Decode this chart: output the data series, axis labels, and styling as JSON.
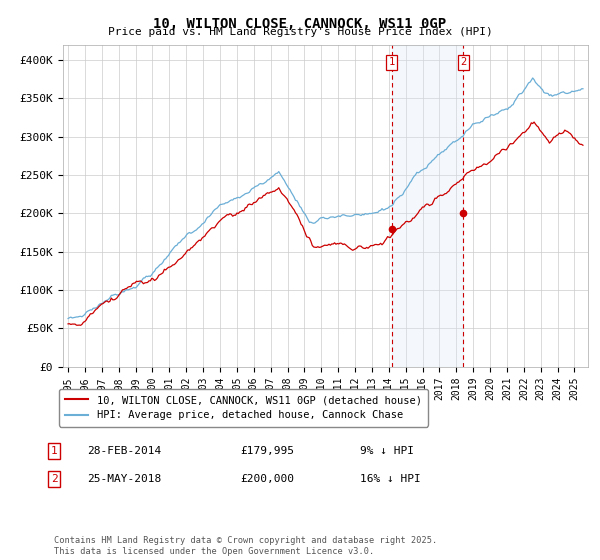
{
  "title": "10, WILTON CLOSE, CANNOCK, WS11 0GP",
  "subtitle": "Price paid vs. HM Land Registry's House Price Index (HPI)",
  "ylabel_ticks": [
    "£0",
    "£50K",
    "£100K",
    "£150K",
    "£200K",
    "£250K",
    "£300K",
    "£350K",
    "£400K"
  ],
  "ytick_values": [
    0,
    50000,
    100000,
    150000,
    200000,
    250000,
    300000,
    350000,
    400000
  ],
  "ylim": [
    0,
    420000
  ],
  "hpi_color": "#6baed6",
  "price_color": "#cc0000",
  "shaded_color": "#dbeaf7",
  "vline_color": "#cc0000",
  "sale1_x": 2014.167,
  "sale2_x": 2018.417,
  "sale1_price": 179995,
  "sale2_price": 200000,
  "legend_label1": "10, WILTON CLOSE, CANNOCK, WS11 0GP (detached house)",
  "legend_label2": "HPI: Average price, detached house, Cannock Chase",
  "table_row1_num": "1",
  "table_row1_date": "28-FEB-2014",
  "table_row1_price": "£179,995",
  "table_row1_hpi": "9% ↓ HPI",
  "table_row2_num": "2",
  "table_row2_date": "25-MAY-2018",
  "table_row2_price": "£200,000",
  "table_row2_hpi": "16% ↓ HPI",
  "footer": "Contains HM Land Registry data © Crown copyright and database right 2025.\nThis data is licensed under the Open Government Licence v3.0.",
  "bg_color": "#ffffff",
  "grid_color": "#cccccc",
  "xtick_years": [
    1995,
    1996,
    1997,
    1998,
    1999,
    2000,
    2001,
    2002,
    2003,
    2004,
    2005,
    2006,
    2007,
    2008,
    2009,
    2010,
    2011,
    2012,
    2013,
    2014,
    2015,
    2016,
    2017,
    2018,
    2019,
    2020,
    2021,
    2022,
    2023,
    2024,
    2025
  ]
}
